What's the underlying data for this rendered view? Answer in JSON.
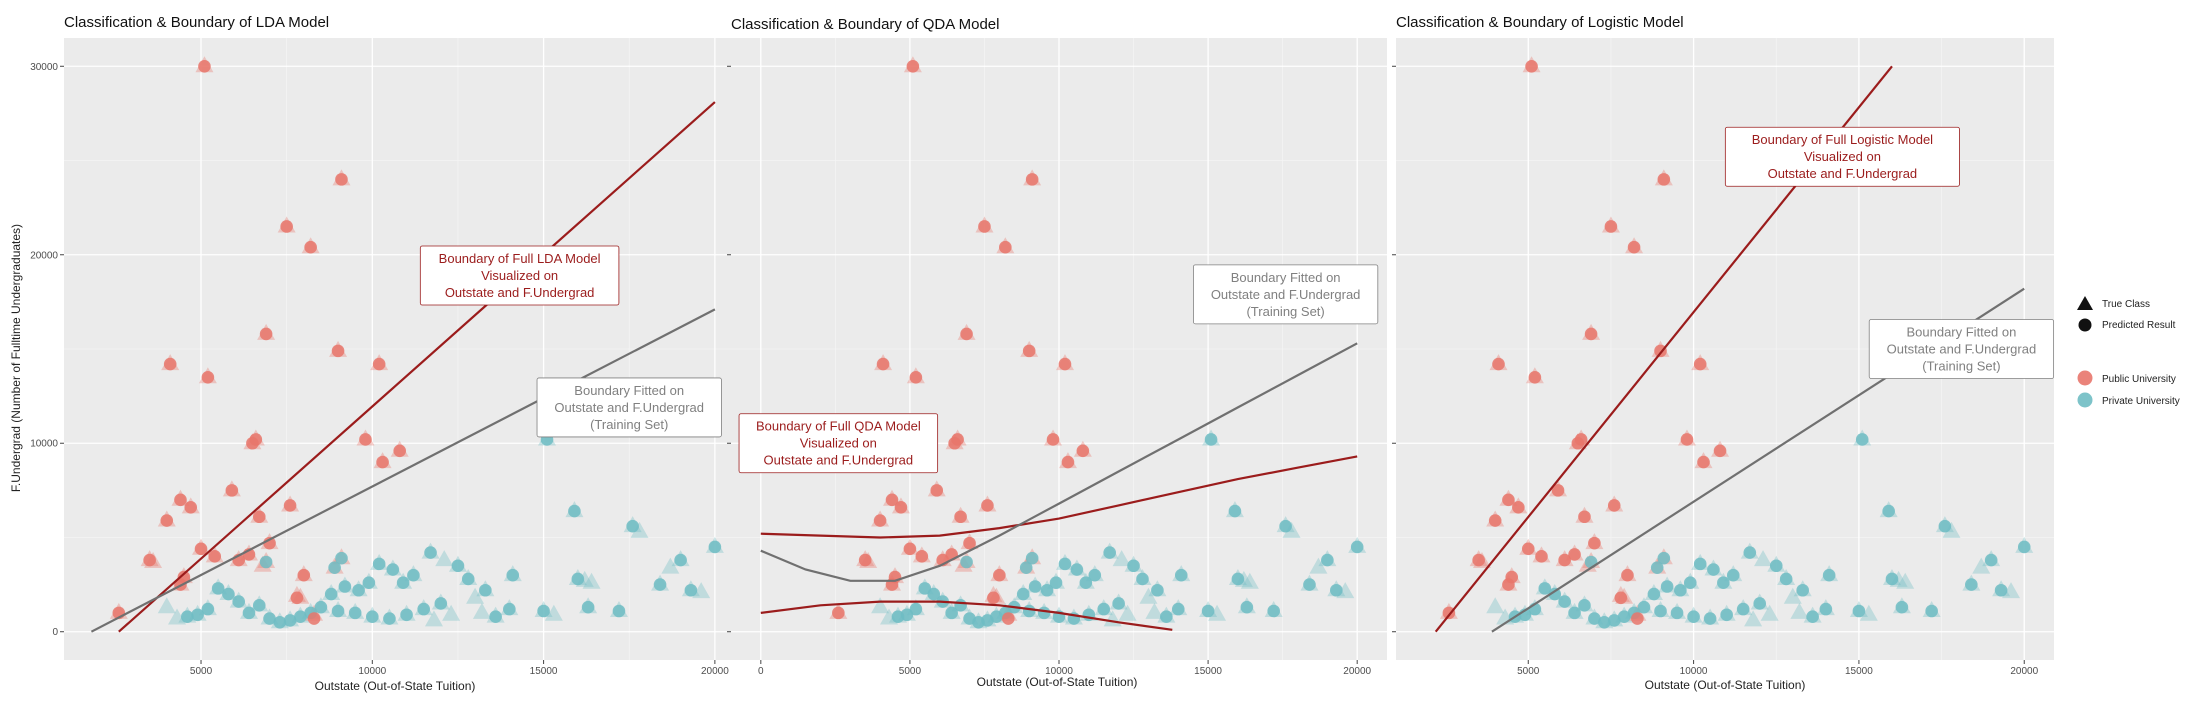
{
  "figure": {
    "ylabel": "F.Undergrad (Number of Fulltime Undergraduates)",
    "xlabel": "Outstate (Out-of-State Tuition)"
  },
  "legend": {
    "shape_items": [
      {
        "label": "True Class",
        "shape": "triangle"
      },
      {
        "label": "Predicted Result",
        "shape": "circle"
      }
    ],
    "color_items": [
      {
        "label": "Public University",
        "color": "#e8766b"
      },
      {
        "label": "Private University",
        "color": "#6fbcc3"
      }
    ]
  },
  "chart_data": [
    {
      "type": "scatter",
      "title": "Classification & Boundary of LDA Model",
      "xlabel": "Outstate (Out-of-State Tuition)",
      "ylabel": "F.Undergrad (Number of Fulltime Undergraduates)",
      "xlim": [
        1000,
        20500
      ],
      "ylim": [
        -1500,
        31500
      ],
      "xticks": [
        5000,
        10000,
        15000,
        20000
      ],
      "yticks": [
        0,
        10000,
        20000,
        30000
      ],
      "show_y_tick_labels": true,
      "grid": true,
      "boundaries": [
        {
          "name": "Full LDA Model",
          "color": "#9b1c1c",
          "x": [
            2600,
            20000
          ],
          "y": [
            0,
            28100
          ]
        },
        {
          "name": "Training Set",
          "color": "#707070",
          "x": [
            1800,
            20000
          ],
          "y": [
            0,
            17100
          ]
        }
      ],
      "annotations": [
        {
          "lines": [
            "Boundary of Full LDA Model",
            "Visualized on",
            "Outstate and F.Undergrad"
          ],
          "x": 14300,
          "y": 18900,
          "color": "#9b1c1c"
        },
        {
          "lines": [
            "Boundary Fitted on",
            "Outstate and F.Undergrad",
            "(Training Set)"
          ],
          "x": 17500,
          "y": 11900,
          "color": "#808080"
        }
      ]
    },
    {
      "type": "scatter",
      "title": "Classification & Boundary of QDA Model",
      "xlabel": "Outstate (Out-of-State Tuition)",
      "ylabel": "",
      "xlim": [
        -1000,
        21000
      ],
      "ylim": [
        -1500,
        31500
      ],
      "xticks": [
        0,
        5000,
        10000,
        15000,
        20000
      ],
      "yticks": [
        0,
        10000,
        20000,
        30000
      ],
      "show_y_tick_labels": false,
      "grid": true,
      "boundaries": [
        {
          "name": "Full QDA Model (upper)",
          "color": "#9b1c1c",
          "x": [
            0,
            2000,
            4000,
            6000,
            8000,
            10000,
            12000,
            14000,
            16000,
            18000,
            20000
          ],
          "y": [
            5200,
            5100,
            5000,
            5100,
            5500,
            6000,
            6700,
            7400,
            8100,
            8700,
            9300
          ]
        },
        {
          "name": "Full QDA Model (lower)",
          "color": "#9b1c1c",
          "x": [
            0,
            2000,
            4000,
            6000,
            8000,
            10000,
            12000,
            13800
          ],
          "y": [
            1000,
            1400,
            1600,
            1600,
            1400,
            1000,
            500,
            100
          ]
        },
        {
          "name": "Training Set",
          "color": "#707070",
          "x": [
            0,
            1500,
            3000,
            4500,
            6000,
            8000,
            10000,
            12000,
            14000,
            16000,
            18000,
            20000
          ],
          "y": [
            4300,
            3300,
            2700,
            2700,
            3500,
            5100,
            6800,
            8500,
            10200,
            11900,
            13600,
            15300
          ]
        }
      ],
      "annotations": [
        {
          "lines": [
            "Boundary of Full QDA Model",
            "Visualized on",
            "Outstate and F.Undergrad"
          ],
          "x": 2600,
          "y": 10000,
          "color": "#9b1c1c"
        },
        {
          "lines": [
            "Boundary Fitted on",
            "Outstate and F.Undergrad",
            "(Training Set)"
          ],
          "x": 17600,
          "y": 17900,
          "color": "#808080"
        }
      ]
    },
    {
      "type": "scatter",
      "title": "Classification & Boundary of Logistic Model",
      "xlabel": "Outstate (Out-of-State Tuition)",
      "ylabel": "",
      "xlim": [
        1000,
        20900
      ],
      "ylim": [
        -1500,
        31500
      ],
      "xticks": [
        5000,
        10000,
        15000,
        20000
      ],
      "yticks": [
        0,
        10000,
        20000,
        30000
      ],
      "show_y_tick_labels": false,
      "grid": true,
      "boundaries": [
        {
          "name": "Full Logistic Model",
          "color": "#9b1c1c",
          "x": [
            2200,
            16000
          ],
          "y": [
            0,
            30000
          ]
        },
        {
          "name": "Training Set",
          "color": "#707070",
          "x": [
            3900,
            20000
          ],
          "y": [
            0,
            18200
          ]
        }
      ],
      "annotations": [
        {
          "lines": [
            "Boundary of Full Logistic Model",
            "Visualized on",
            "Outstate and F.Undergrad"
          ],
          "x": 14500,
          "y": 25200,
          "color": "#9b1c1c"
        },
        {
          "lines": [
            "Boundary Fitted on",
            "Outstate and F.Undergrad",
            "(Training Set)"
          ],
          "x": 18100,
          "y": 15000,
          "color": "#808080"
        }
      ]
    }
  ],
  "points": {
    "public_true_class": [
      [
        5100,
        30000
      ],
      [
        9100,
        24000
      ],
      [
        7500,
        21500
      ],
      [
        8200,
        20400
      ],
      [
        6900,
        15800
      ],
      [
        4100,
        14200
      ],
      [
        5200,
        13500
      ],
      [
        9000,
        14900
      ],
      [
        10200,
        14200
      ],
      [
        6500,
        10000
      ],
      [
        6600,
        10200
      ],
      [
        9800,
        10200
      ],
      [
        10300,
        9000
      ],
      [
        10800,
        9600
      ],
      [
        5900,
        7500
      ],
      [
        4400,
        7000
      ],
      [
        4700,
        6600
      ],
      [
        7600,
        6700
      ],
      [
        4000,
        5900
      ],
      [
        6700,
        6100
      ],
      [
        7000,
        4700
      ],
      [
        5000,
        4400
      ],
      [
        5400,
        4000
      ],
      [
        6100,
        3800
      ],
      [
        6400,
        4100
      ],
      [
        6900,
        3700
      ],
      [
        3500,
        3800
      ],
      [
        3600,
        3700
      ],
      [
        4500,
        2900
      ],
      [
        4400,
        2500
      ],
      [
        8000,
        3000
      ],
      [
        8900,
        3400
      ],
      [
        9100,
        3900
      ],
      [
        7800,
        1900
      ],
      [
        7900,
        1800
      ],
      [
        2600,
        1000
      ],
      [
        8300,
        900
      ],
      [
        6800,
        3500
      ]
    ],
    "private_true_class": [
      [
        15100,
        10200
      ],
      [
        15900,
        6400
      ],
      [
        17600,
        5600
      ],
      [
        17800,
        5300
      ],
      [
        20000,
        4500
      ],
      [
        19000,
        3800
      ],
      [
        18700,
        3400
      ],
      [
        18400,
        2500
      ],
      [
        19300,
        2200
      ],
      [
        19600,
        2100
      ],
      [
        17200,
        1100
      ],
      [
        16300,
        1300
      ],
      [
        16000,
        2800
      ],
      [
        16200,
        2700
      ],
      [
        16400,
        2600
      ],
      [
        15000,
        1100
      ],
      [
        15300,
        900
      ],
      [
        14100,
        3000
      ],
      [
        13300,
        2200
      ],
      [
        13000,
        1800
      ],
      [
        12800,
        2800
      ],
      [
        12500,
        3500
      ],
      [
        12100,
        3800
      ],
      [
        11700,
        4200
      ],
      [
        11200,
        3000
      ],
      [
        10900,
        2600
      ],
      [
        10600,
        3300
      ],
      [
        10200,
        3600
      ],
      [
        9900,
        2600
      ],
      [
        9600,
        2200
      ],
      [
        9200,
        2400
      ],
      [
        8800,
        2000
      ],
      [
        8500,
        1300
      ],
      [
        8200,
        1000
      ],
      [
        7900,
        800
      ],
      [
        7600,
        600
      ],
      [
        7300,
        500
      ],
      [
        7000,
        700
      ],
      [
        6700,
        1400
      ],
      [
        6400,
        1000
      ],
      [
        6100,
        1600
      ],
      [
        5800,
        2000
      ],
      [
        5500,
        2300
      ],
      [
        5200,
        1200
      ],
      [
        4900,
        900
      ],
      [
        4600,
        800
      ],
      [
        4300,
        700
      ],
      [
        4000,
        1300
      ],
      [
        11500,
        1200
      ],
      [
        11000,
        900
      ],
      [
        10500,
        700
      ],
      [
        10000,
        800
      ],
      [
        9500,
        1000
      ],
      [
        9000,
        1100
      ],
      [
        12000,
        1500
      ],
      [
        12300,
        900
      ],
      [
        13600,
        800
      ],
      [
        14000,
        1200
      ],
      [
        13200,
        1000
      ],
      [
        11800,
        600
      ]
    ],
    "public_predicted": [
      [
        5100,
        30000
      ],
      [
        9100,
        24000
      ],
      [
        7500,
        21500
      ],
      [
        8200,
        20400
      ],
      [
        6900,
        15800
      ],
      [
        4100,
        14200
      ],
      [
        5200,
        13500
      ],
      [
        9000,
        14900
      ],
      [
        10200,
        14200
      ],
      [
        6500,
        10000
      ],
      [
        6600,
        10200
      ],
      [
        9800,
        10200
      ],
      [
        10300,
        9000
      ],
      [
        10800,
        9600
      ],
      [
        5900,
        7500
      ],
      [
        4400,
        7000
      ],
      [
        4700,
        6600
      ],
      [
        7600,
        6700
      ],
      [
        4000,
        5900
      ],
      [
        6700,
        6100
      ],
      [
        7000,
        4700
      ],
      [
        5000,
        4400
      ],
      [
        5400,
        4000
      ],
      [
        6100,
        3800
      ],
      [
        6400,
        4100
      ],
      [
        3500,
        3800
      ],
      [
        4500,
        2900
      ],
      [
        4400,
        2500
      ],
      [
        8000,
        3000
      ],
      [
        2600,
        1000
      ],
      [
        8300,
        700
      ],
      [
        7800,
        1800
      ]
    ],
    "private_predicted": [
      [
        15100,
        10200
      ],
      [
        15900,
        6400
      ],
      [
        17600,
        5600
      ],
      [
        20000,
        4500
      ],
      [
        19000,
        3800
      ],
      [
        18400,
        2500
      ],
      [
        19300,
        2200
      ],
      [
        17200,
        1100
      ],
      [
        16300,
        1300
      ],
      [
        16000,
        2800
      ],
      [
        15000,
        1100
      ],
      [
        14100,
        3000
      ],
      [
        13300,
        2200
      ],
      [
        12800,
        2800
      ],
      [
        12500,
        3500
      ],
      [
        11700,
        4200
      ],
      [
        11200,
        3000
      ],
      [
        10900,
        2600
      ],
      [
        10600,
        3300
      ],
      [
        10200,
        3600
      ],
      [
        9900,
        2600
      ],
      [
        9600,
        2200
      ],
      [
        9200,
        2400
      ],
      [
        8800,
        2000
      ],
      [
        8500,
        1300
      ],
      [
        8200,
        1000
      ],
      [
        7900,
        800
      ],
      [
        7600,
        600
      ],
      [
        7300,
        500
      ],
      [
        7000,
        700
      ],
      [
        6700,
        1400
      ],
      [
        6400,
        1000
      ],
      [
        6100,
        1600
      ],
      [
        5800,
        2000
      ],
      [
        5500,
        2300
      ],
      [
        5200,
        1200
      ],
      [
        4900,
        900
      ],
      [
        4600,
        800
      ],
      [
        11500,
        1200
      ],
      [
        11000,
        900
      ],
      [
        10500,
        700
      ],
      [
        10000,
        800
      ],
      [
        9500,
        1000
      ],
      [
        9000,
        1100
      ],
      [
        12000,
        1500
      ],
      [
        13600,
        800
      ],
      [
        14000,
        1200
      ],
      [
        6900,
        3700
      ],
      [
        8900,
        3400
      ],
      [
        9100,
        3900
      ]
    ]
  }
}
